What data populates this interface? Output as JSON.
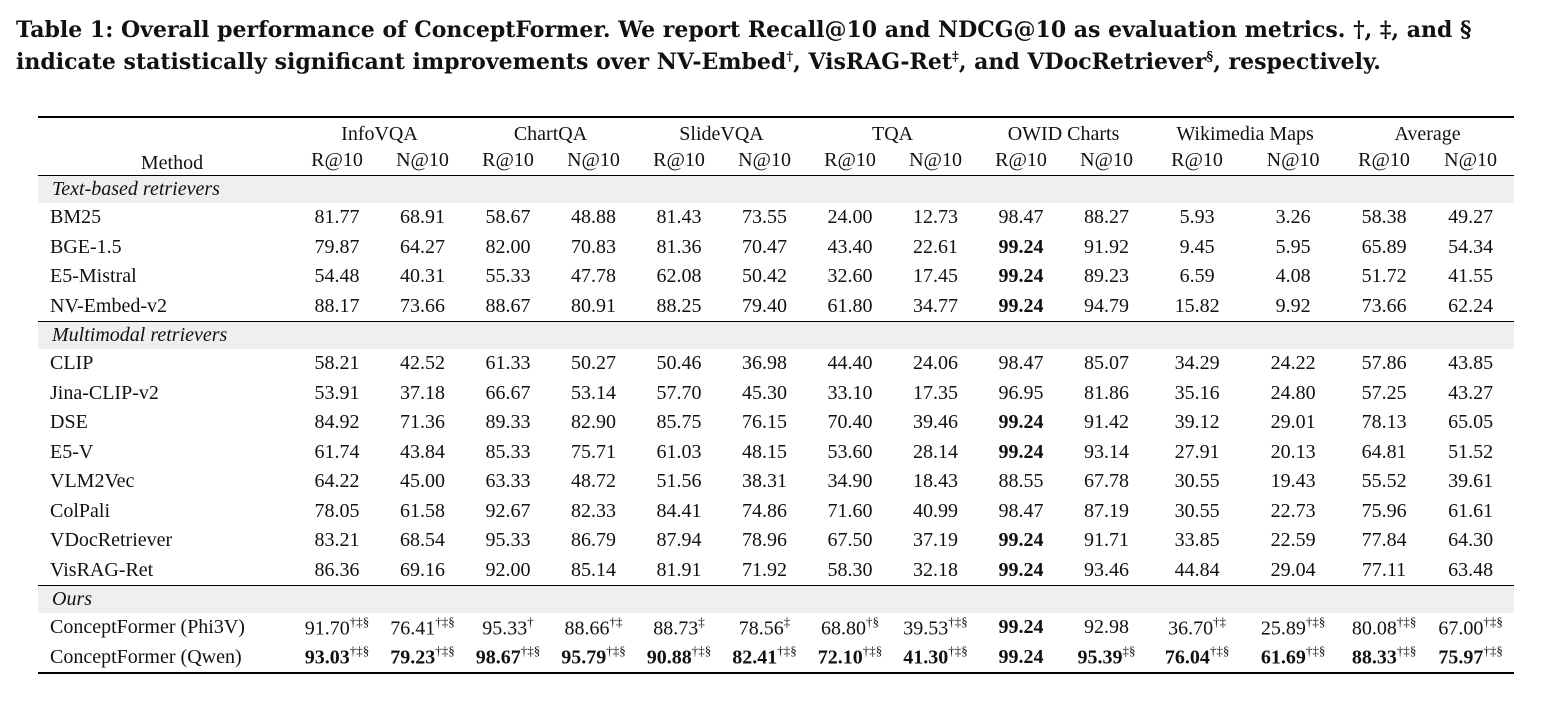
{
  "caption": {
    "part1": "Table 1: Overall performance of ConceptFormer. We report Recall@10 and NDCG@10 as evaluation metrics. †, ‡, and § indicate statistically significant improvements over NV-Embed",
    "sup1": "†",
    "part2": ", VisRAG-Ret",
    "sup2": "‡",
    "part3": ", and VDocRetriever",
    "sup3": "§",
    "part4": ", respectively."
  },
  "table": {
    "method_header": "Method",
    "datasets": [
      "InfoVQA",
      "ChartQA",
      "SlideVQA",
      "TQA",
      "OWID Charts",
      "Wikimedia Maps",
      "Average"
    ],
    "sub_headers": [
      "R@10",
      "N@10",
      "R@10",
      "N@10",
      "R@10",
      "N@10",
      "R@10",
      "N@10",
      "R@10",
      "N@10",
      "R@10",
      "N@10",
      "R@10",
      "N@10"
    ],
    "sections": [
      {
        "title": "Text-based retrievers",
        "rows": [
          {
            "method": "BM25",
            "cells": [
              {
                "v": "81.77"
              },
              {
                "v": "68.91"
              },
              {
                "v": "58.67"
              },
              {
                "v": "48.88"
              },
              {
                "v": "81.43"
              },
              {
                "v": "73.55"
              },
              {
                "v": "24.00"
              },
              {
                "v": "12.73"
              },
              {
                "v": "98.47"
              },
              {
                "v": "88.27"
              },
              {
                "v": "5.93"
              },
              {
                "v": "3.26"
              },
              {
                "v": "58.38"
              },
              {
                "v": "49.27"
              }
            ]
          },
          {
            "method": "BGE-1.5",
            "cells": [
              {
                "v": "79.87"
              },
              {
                "v": "64.27"
              },
              {
                "v": "82.00"
              },
              {
                "v": "70.83"
              },
              {
                "v": "81.36"
              },
              {
                "v": "70.47"
              },
              {
                "v": "43.40"
              },
              {
                "v": "22.61"
              },
              {
                "v": "99.24",
                "b": true
              },
              {
                "v": "91.92"
              },
              {
                "v": "9.45"
              },
              {
                "v": "5.95"
              },
              {
                "v": "65.89"
              },
              {
                "v": "54.34"
              }
            ]
          },
          {
            "method": "E5-Mistral",
            "cells": [
              {
                "v": "54.48"
              },
              {
                "v": "40.31"
              },
              {
                "v": "55.33"
              },
              {
                "v": "47.78"
              },
              {
                "v": "62.08"
              },
              {
                "v": "50.42"
              },
              {
                "v": "32.60"
              },
              {
                "v": "17.45"
              },
              {
                "v": "99.24",
                "b": true
              },
              {
                "v": "89.23"
              },
              {
                "v": "6.59"
              },
              {
                "v": "4.08"
              },
              {
                "v": "51.72"
              },
              {
                "v": "41.55"
              }
            ]
          },
          {
            "method": "NV-Embed-v2",
            "cells": [
              {
                "v": "88.17"
              },
              {
                "v": "73.66"
              },
              {
                "v": "88.67"
              },
              {
                "v": "80.91"
              },
              {
                "v": "88.25"
              },
              {
                "v": "79.40"
              },
              {
                "v": "61.80"
              },
              {
                "v": "34.77"
              },
              {
                "v": "99.24",
                "b": true
              },
              {
                "v": "94.79"
              },
              {
                "v": "15.82"
              },
              {
                "v": "9.92"
              },
              {
                "v": "73.66"
              },
              {
                "v": "62.24"
              }
            ]
          }
        ]
      },
      {
        "title": "Multimodal retrievers",
        "rows": [
          {
            "method": "CLIP",
            "cells": [
              {
                "v": "58.21"
              },
              {
                "v": "42.52"
              },
              {
                "v": "61.33"
              },
              {
                "v": "50.27"
              },
              {
                "v": "50.46"
              },
              {
                "v": "36.98"
              },
              {
                "v": "44.40"
              },
              {
                "v": "24.06"
              },
              {
                "v": "98.47"
              },
              {
                "v": "85.07"
              },
              {
                "v": "34.29"
              },
              {
                "v": "24.22"
              },
              {
                "v": "57.86"
              },
              {
                "v": "43.85"
              }
            ]
          },
          {
            "method": "Jina-CLIP-v2",
            "cells": [
              {
                "v": "53.91"
              },
              {
                "v": "37.18"
              },
              {
                "v": "66.67"
              },
              {
                "v": "53.14"
              },
              {
                "v": "57.70"
              },
              {
                "v": "45.30"
              },
              {
                "v": "33.10"
              },
              {
                "v": "17.35"
              },
              {
                "v": "96.95"
              },
              {
                "v": "81.86"
              },
              {
                "v": "35.16"
              },
              {
                "v": "24.80"
              },
              {
                "v": "57.25"
              },
              {
                "v": "43.27"
              }
            ]
          },
          {
            "method": "DSE",
            "cells": [
              {
                "v": "84.92"
              },
              {
                "v": "71.36"
              },
              {
                "v": "89.33"
              },
              {
                "v": "82.90"
              },
              {
                "v": "85.75"
              },
              {
                "v": "76.15"
              },
              {
                "v": "70.40"
              },
              {
                "v": "39.46"
              },
              {
                "v": "99.24",
                "b": true
              },
              {
                "v": "91.42"
              },
              {
                "v": "39.12"
              },
              {
                "v": "29.01"
              },
              {
                "v": "78.13"
              },
              {
                "v": "65.05"
              }
            ]
          },
          {
            "method": "E5-V",
            "cells": [
              {
                "v": "61.74"
              },
              {
                "v": "43.84"
              },
              {
                "v": "85.33"
              },
              {
                "v": "75.71"
              },
              {
                "v": "61.03"
              },
              {
                "v": "48.15"
              },
              {
                "v": "53.60"
              },
              {
                "v": "28.14"
              },
              {
                "v": "99.24",
                "b": true
              },
              {
                "v": "93.14"
              },
              {
                "v": "27.91"
              },
              {
                "v": "20.13"
              },
              {
                "v": "64.81"
              },
              {
                "v": "51.52"
              }
            ]
          },
          {
            "method": "VLM2Vec",
            "cells": [
              {
                "v": "64.22"
              },
              {
                "v": "45.00"
              },
              {
                "v": "63.33"
              },
              {
                "v": "48.72"
              },
              {
                "v": "51.56"
              },
              {
                "v": "38.31"
              },
              {
                "v": "34.90"
              },
              {
                "v": "18.43"
              },
              {
                "v": "88.55"
              },
              {
                "v": "67.78"
              },
              {
                "v": "30.55"
              },
              {
                "v": "19.43"
              },
              {
                "v": "55.52"
              },
              {
                "v": "39.61"
              }
            ]
          },
          {
            "method": "ColPali",
            "cells": [
              {
                "v": "78.05"
              },
              {
                "v": "61.58"
              },
              {
                "v": "92.67"
              },
              {
                "v": "82.33"
              },
              {
                "v": "84.41"
              },
              {
                "v": "74.86"
              },
              {
                "v": "71.60"
              },
              {
                "v": "40.99"
              },
              {
                "v": "98.47"
              },
              {
                "v": "87.19"
              },
              {
                "v": "30.55"
              },
              {
                "v": "22.73"
              },
              {
                "v": "75.96"
              },
              {
                "v": "61.61"
              }
            ]
          },
          {
            "method": "VDocRetriever",
            "cells": [
              {
                "v": "83.21"
              },
              {
                "v": "68.54"
              },
              {
                "v": "95.33"
              },
              {
                "v": "86.79"
              },
              {
                "v": "87.94"
              },
              {
                "v": "78.96"
              },
              {
                "v": "67.50"
              },
              {
                "v": "37.19"
              },
              {
                "v": "99.24",
                "b": true
              },
              {
                "v": "91.71"
              },
              {
                "v": "33.85"
              },
              {
                "v": "22.59"
              },
              {
                "v": "77.84"
              },
              {
                "v": "64.30"
              }
            ]
          },
          {
            "method": "VisRAG-Ret",
            "cells": [
              {
                "v": "86.36"
              },
              {
                "v": "69.16"
              },
              {
                "v": "92.00"
              },
              {
                "v": "85.14"
              },
              {
                "v": "81.91"
              },
              {
                "v": "71.92"
              },
              {
                "v": "58.30"
              },
              {
                "v": "32.18"
              },
              {
                "v": "99.24",
                "b": true
              },
              {
                "v": "93.46"
              },
              {
                "v": "44.84"
              },
              {
                "v": "29.04"
              },
              {
                "v": "77.11"
              },
              {
                "v": "63.48"
              }
            ]
          }
        ]
      },
      {
        "title": "Ours",
        "rows": [
          {
            "method": "ConceptFormer (Phi3V)",
            "cells": [
              {
                "v": "91.70",
                "s": "†‡§"
              },
              {
                "v": "76.41",
                "s": "†‡§"
              },
              {
                "v": "95.33",
                "s": "†"
              },
              {
                "v": "88.66",
                "s": "†‡"
              },
              {
                "v": "88.73",
                "s": "‡"
              },
              {
                "v": "78.56",
                "s": "‡"
              },
              {
                "v": "68.80",
                "s": "†§"
              },
              {
                "v": "39.53",
                "s": "†‡§"
              },
              {
                "v": "99.24",
                "b": true
              },
              {
                "v": "92.98"
              },
              {
                "v": "36.70",
                "s": "†‡"
              },
              {
                "v": "25.89",
                "s": "†‡§"
              },
              {
                "v": "80.08",
                "s": "†‡§"
              },
              {
                "v": "67.00",
                "s": "†‡§"
              }
            ]
          },
          {
            "method": "ConceptFormer (Qwen)",
            "cells": [
              {
                "v": "93.03",
                "b": true,
                "s": "†‡§"
              },
              {
                "v": "79.23",
                "b": true,
                "s": "†‡§"
              },
              {
                "v": "98.67",
                "b": true,
                "s": "†‡§"
              },
              {
                "v": "95.79",
                "b": true,
                "s": "†‡§"
              },
              {
                "v": "90.88",
                "b": true,
                "s": "†‡§"
              },
              {
                "v": "82.41",
                "b": true,
                "s": "†‡§"
              },
              {
                "v": "72.10",
                "b": true,
                "s": "†‡§"
              },
              {
                "v": "41.30",
                "b": true,
                "s": "†‡§"
              },
              {
                "v": "99.24",
                "b": true
              },
              {
                "v": "95.39",
                "b": true,
                "s": "‡§"
              },
              {
                "v": "76.04",
                "b": true,
                "s": "†‡§"
              },
              {
                "v": "61.69",
                "b": true,
                "s": "†‡§"
              },
              {
                "v": "88.33",
                "b": true,
                "s": "†‡§"
              },
              {
                "v": "75.97",
                "b": true,
                "s": "†‡§"
              }
            ]
          }
        ]
      }
    ]
  }
}
